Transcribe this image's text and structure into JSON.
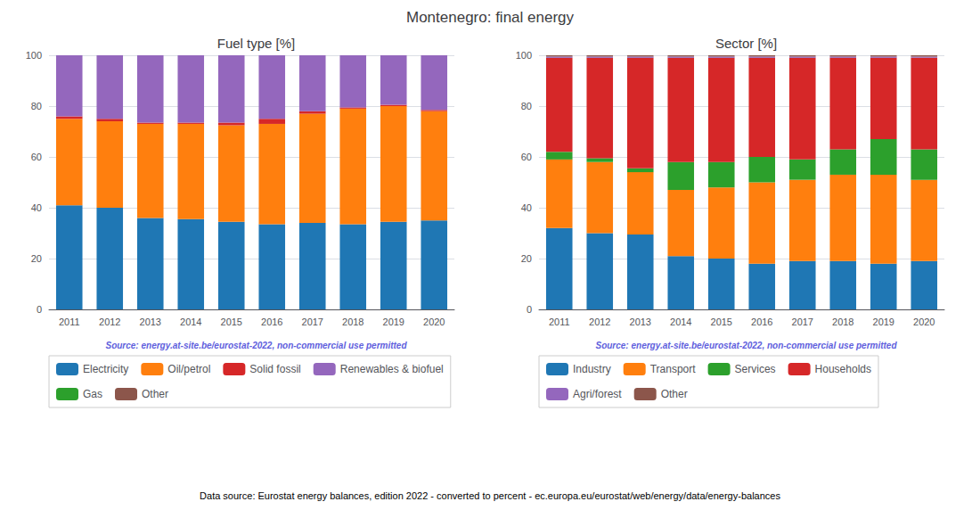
{
  "title": "Montenegro: final energy",
  "annotations": [
    "Data source: Eurostat energy balances, edition 2022 - converted to percent - ec.europa.eu/eurostat/web/energy/data/energy-balances"
  ],
  "chart_data": [
    {
      "type": "bar",
      "stacked": true,
      "title": "Fuel type [%]",
      "categories": [
        "2011",
        "2012",
        "2013",
        "2014",
        "2015",
        "2016",
        "2017",
        "2018",
        "2019",
        "2020"
      ],
      "series": [
        {
          "name": "Electricity",
          "color": "#1f77b4",
          "values": [
            41.0,
            40.0,
            36.0,
            35.5,
            34.5,
            33.5,
            34.0,
            33.5,
            34.5,
            35.0
          ]
        },
        {
          "name": "Oil/petrol",
          "color": "#ff7f0e",
          "values": [
            34.0,
            34.0,
            37.0,
            37.5,
            38.0,
            39.5,
            43.0,
            45.5,
            45.5,
            43.0
          ]
        },
        {
          "name": "Solid fossil",
          "color": "#d62728",
          "values": [
            1.0,
            1.0,
            0.5,
            0.5,
            1.0,
            2.0,
            1.0,
            0.5,
            0.5,
            0.5
          ]
        },
        {
          "name": "Renewables & biofuel",
          "color": "#9467bd",
          "values": [
            24.0,
            25.0,
            26.5,
            26.5,
            26.5,
            25.0,
            22.0,
            20.5,
            19.5,
            21.5
          ]
        },
        {
          "name": "Gas",
          "color": "#2ca02c",
          "values": [
            0.0,
            0.0,
            0.0,
            0.0,
            0.0,
            0.0,
            0.0,
            0.0,
            0.0,
            0.0
          ]
        },
        {
          "name": "Other",
          "color": "#8c564b",
          "values": [
            0.0,
            0.0,
            0.0,
            0.0,
            0.0,
            0.0,
            0.0,
            0.0,
            0.0,
            0.0
          ]
        }
      ],
      "ylim": [
        0,
        100
      ],
      "yticks": [
        0,
        20,
        40,
        60,
        80,
        100
      ],
      "grid": true,
      "legend": "bottom",
      "annotations": [
        "Source: energy.at-site.be/eurostat-2022, non-commercial use permitted"
      ]
    },
    {
      "type": "bar",
      "stacked": true,
      "title": "Sector [%]",
      "categories": [
        "2011",
        "2012",
        "2013",
        "2014",
        "2015",
        "2016",
        "2017",
        "2018",
        "2019",
        "2020"
      ],
      "series": [
        {
          "name": "Industry",
          "color": "#1f77b4",
          "values": [
            32.0,
            30.0,
            29.5,
            21.0,
            20.0,
            18.0,
            19.0,
            19.0,
            18.0,
            19.0
          ]
        },
        {
          "name": "Transport",
          "color": "#ff7f0e",
          "values": [
            27.0,
            28.0,
            24.5,
            26.0,
            28.0,
            32.0,
            32.0,
            34.0,
            35.0,
            32.0
          ]
        },
        {
          "name": "Services",
          "color": "#2ca02c",
          "values": [
            3.0,
            1.5,
            1.5,
            11.0,
            10.0,
            10.0,
            8.0,
            10.0,
            14.0,
            12.0
          ]
        },
        {
          "name": "Households",
          "color": "#d62728",
          "values": [
            37.0,
            39.5,
            43.5,
            41.0,
            41.0,
            39.0,
            40.0,
            36.0,
            32.0,
            36.0
          ]
        },
        {
          "name": "Agri/forest",
          "color": "#9467bd",
          "values": [
            0.5,
            0.5,
            0.5,
            0.5,
            0.5,
            0.5,
            0.5,
            0.5,
            0.5,
            0.5
          ]
        },
        {
          "name": "Other",
          "color": "#8c564b",
          "values": [
            0.5,
            0.5,
            0.5,
            0.5,
            0.5,
            0.5,
            0.5,
            0.5,
            0.5,
            0.5
          ]
        }
      ],
      "ylim": [
        0,
        100
      ],
      "yticks": [
        0,
        20,
        40,
        60,
        80,
        100
      ],
      "grid": true,
      "legend": "bottom",
      "annotations": [
        "Source: energy.at-site.be/eurostat-2022, non-commercial use permitted"
      ]
    }
  ]
}
